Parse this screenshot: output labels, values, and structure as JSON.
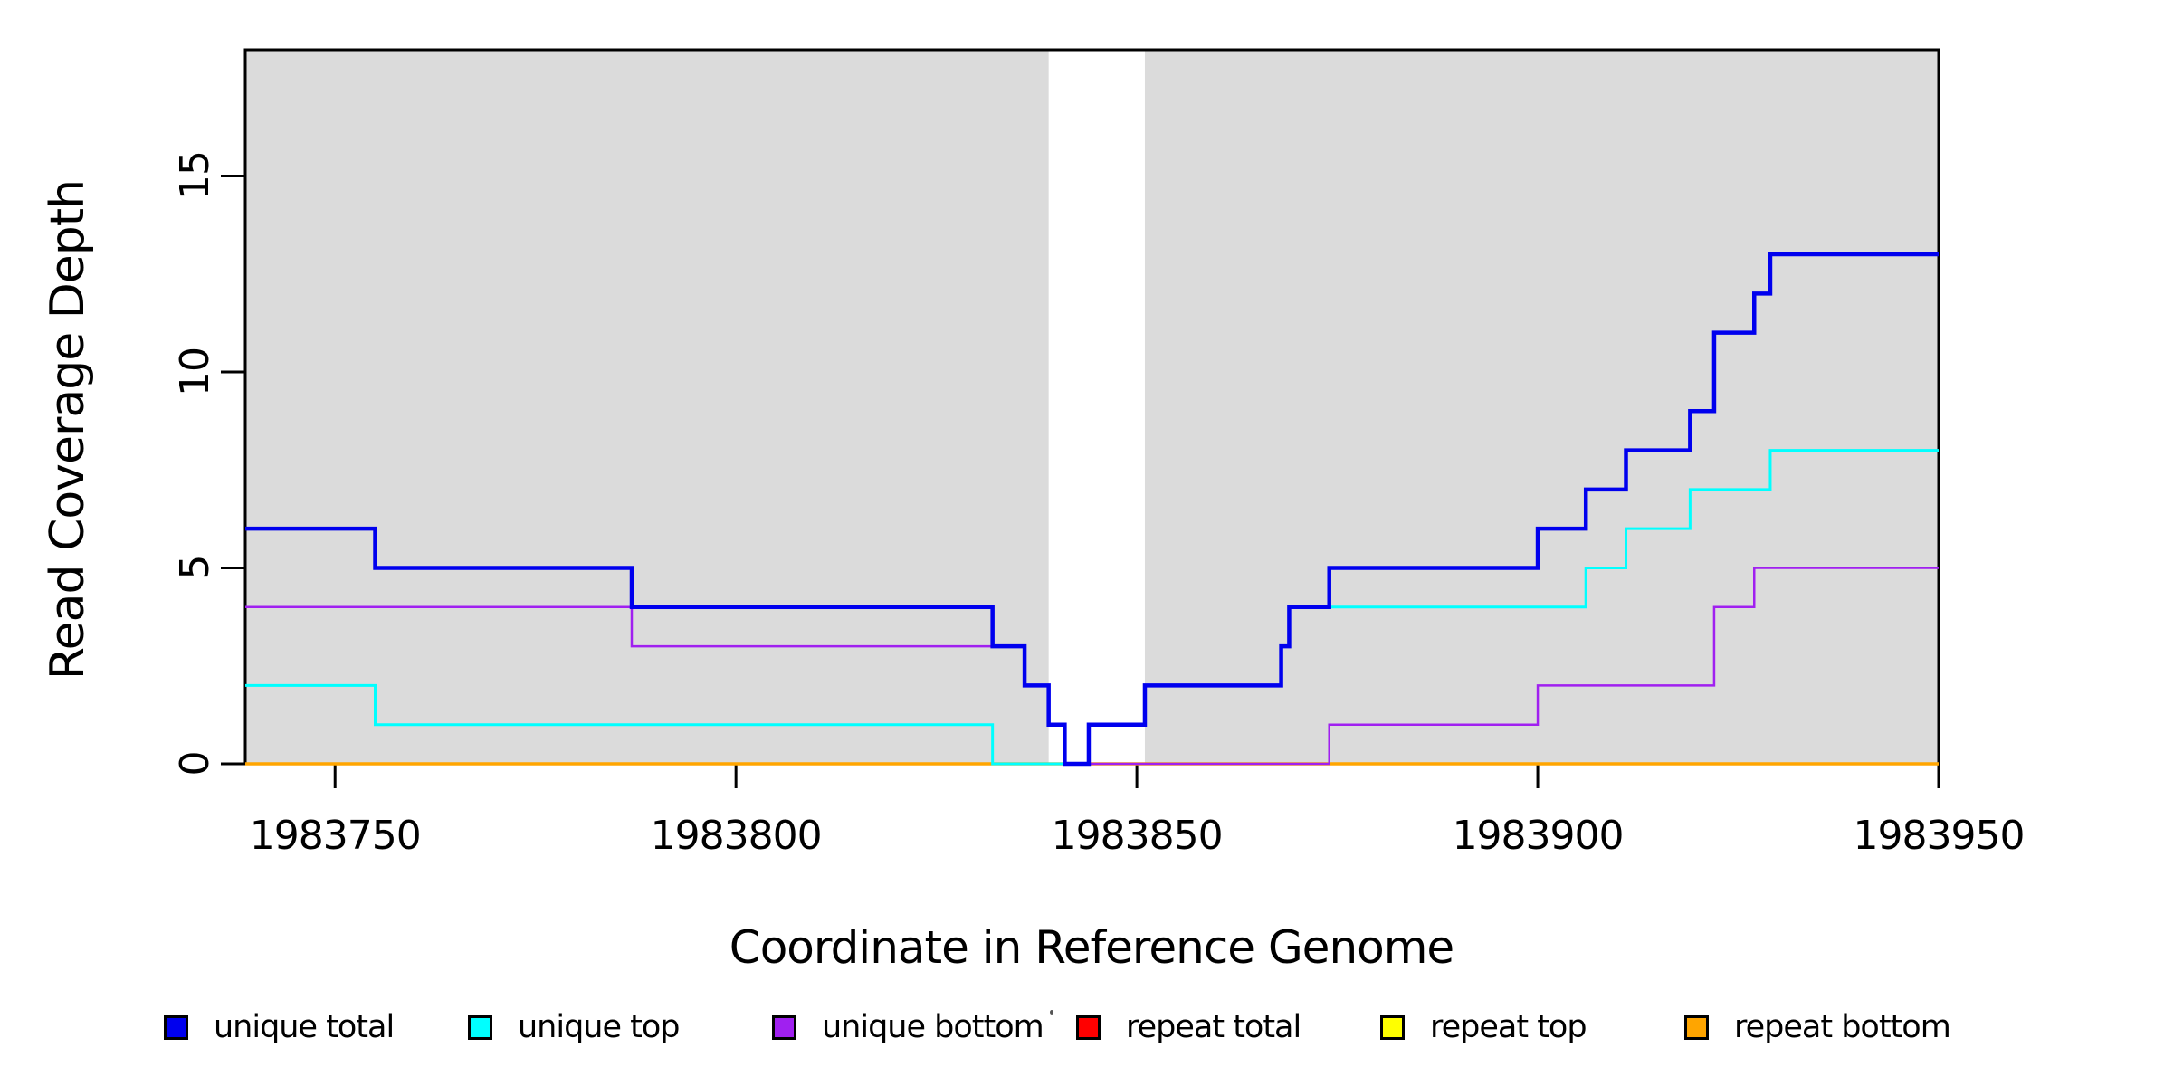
{
  "chart_data": {
    "type": "line",
    "subtype": "step",
    "title": "",
    "xlabel": "Coordinate in Reference Genome",
    "ylabel": "Read Coverage Depth",
    "xlim": [
      1983738.8,
      1983950
    ],
    "ylim": [
      0,
      18.22
    ],
    "grid": false,
    "legend_position": "bottom",
    "background_shading": {
      "color": "#DBDBDB",
      "regions": [
        {
          "from": 1983738.8,
          "to": 1983839
        },
        {
          "from": 1983851,
          "to": 1983950
        }
      ],
      "white_gap_band": {
        "from": 1983839,
        "to": 1983851
      }
    },
    "x_axis": {
      "ticks": [
        {
          "label": "1983750",
          "value": 1983750
        },
        {
          "label": "1983800",
          "value": 1983800
        },
        {
          "label": "1983850",
          "value": 1983850
        },
        {
          "label": "1983900",
          "value": 1983900
        },
        {
          "label": "1983950",
          "value": 1983950
        }
      ]
    },
    "y_axis": {
      "ticks": [
        {
          "label": "0",
          "value": 0
        },
        {
          "label": "5",
          "value": 5
        },
        {
          "label": "10",
          "value": 10
        },
        {
          "label": "15",
          "value": 15
        }
      ]
    },
    "series": [
      {
        "name": "unique total",
        "color": "#0000EE",
        "width": 4.5,
        "steps": [
          [
            1983738.8,
            6
          ],
          [
            1983755,
            5
          ],
          [
            1983787,
            4
          ],
          [
            1983832,
            3
          ],
          [
            1983836,
            2
          ],
          [
            1983839,
            1
          ],
          [
            1983841,
            0
          ],
          [
            1983844,
            1
          ],
          [
            1983851,
            2
          ],
          [
            1983868,
            3
          ],
          [
            1983869,
            4
          ],
          [
            1983874,
            5
          ],
          [
            1983900,
            6
          ],
          [
            1983906,
            7
          ],
          [
            1983911,
            8
          ],
          [
            1983919,
            9
          ],
          [
            1983922,
            11
          ],
          [
            1983927,
            12
          ],
          [
            1983929,
            13
          ]
        ]
      },
      {
        "name": "unique top",
        "color": "#00FFFF",
        "width": 3,
        "steps": [
          [
            1983738.8,
            2
          ],
          [
            1983755,
            1
          ],
          [
            1983832,
            0
          ],
          [
            1983844,
            1
          ],
          [
            1983851,
            2
          ],
          [
            1983868,
            3
          ],
          [
            1983869,
            4
          ],
          [
            1983906,
            5
          ],
          [
            1983911,
            6
          ],
          [
            1983919,
            7
          ],
          [
            1983929,
            8
          ]
        ]
      },
      {
        "name": "unique bottom",
        "color": "#A020F0",
        "width": 2.5,
        "steps": [
          [
            1983738.8,
            4
          ],
          [
            1983787,
            3
          ],
          [
            1983836,
            2
          ],
          [
            1983839,
            1
          ],
          [
            1983841,
            0
          ],
          [
            1983874,
            1
          ],
          [
            1983900,
            2
          ],
          [
            1983922,
            4
          ],
          [
            1983927,
            5
          ]
        ]
      },
      {
        "name": "repeat total",
        "color": "#FF0000",
        "width": 3,
        "steps": [
          [
            1983738.8,
            0
          ]
        ]
      },
      {
        "name": "repeat top",
        "color": "#FFFF00",
        "width": 3,
        "steps": [
          [
            1983738.8,
            0
          ]
        ]
      },
      {
        "name": "repeat bottom",
        "color": "#FFA500",
        "width": 3.5,
        "steps": [
          [
            1983738.8,
            0
          ]
        ]
      }
    ],
    "paint_order": [
      3,
      4,
      5,
      2,
      1,
      0
    ]
  }
}
